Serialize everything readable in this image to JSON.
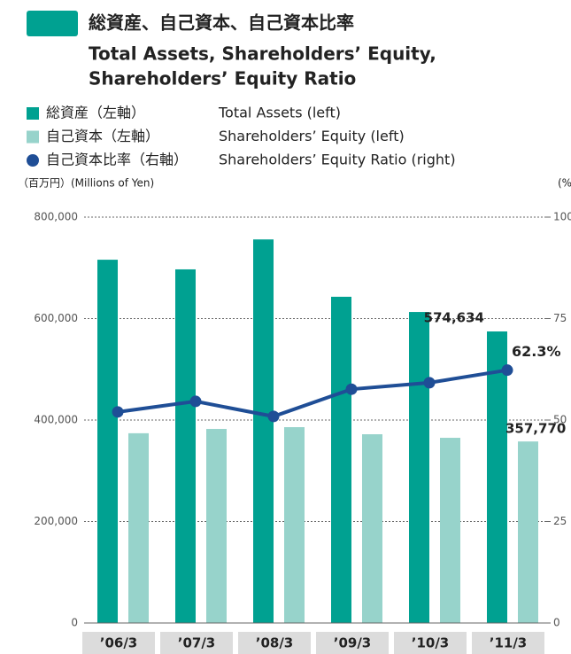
{
  "chart_data": {
    "type": "bar_line",
    "title": "総資産、自己資本、自己資本比率",
    "subtitle": [
      "Total Assets, Shareholders’ Equity,",
      "Shareholders’ Equity Ratio"
    ],
    "ylabel": "（百万円）(Millions of Yen)",
    "y2label": "(%)",
    "categories": [
      "’06/3",
      "’07/3",
      "’08/3",
      "’09/3",
      "’10/3",
      "’11/3"
    ],
    "series": [
      {
        "name": "総資産（左軸）",
        "name_en": "Total Assets (left)",
        "color": "#00a191",
        "type": "bar",
        "values": [
          716000,
          697000,
          756000,
          643000,
          613000,
          574634
        ],
        "value_labels": [
          null,
          null,
          null,
          null,
          null,
          "574,634"
        ]
      },
      {
        "name": "自己資本（左軸）",
        "name_en": "Shareholders’ Equity (left)",
        "color": "#97d3cb",
        "type": "bar",
        "values": [
          374000,
          382500,
          386000,
          372000,
          365000,
          357770
        ],
        "value_labels": [
          null,
          null,
          null,
          null,
          null,
          "357,770"
        ]
      },
      {
        "name": "自己資本比率（右軸）",
        "name_en": "Shareholders’ Equity Ratio (right)",
        "color": "#1f4e96",
        "type": "line",
        "axis": "y2",
        "values": [
          52.0,
          54.6,
          50.9,
          57.6,
          59.2,
          62.3
        ],
        "value_labels": [
          null,
          null,
          null,
          null,
          null,
          "62.3%"
        ]
      }
    ],
    "ylim": [
      0,
      800000
    ],
    "yticks": [
      {
        "value": 0,
        "label": "0"
      },
      {
        "value": 200000,
        "label": "200,000"
      },
      {
        "value": 400000,
        "label": "400,000"
      },
      {
        "value": 600000,
        "label": "600,000"
      },
      {
        "value": 800000,
        "label": "800,000"
      }
    ],
    "y2lim": [
      0,
      100
    ],
    "y2ticks": [
      0,
      25,
      50,
      75,
      100
    ],
    "grid": true
  }
}
